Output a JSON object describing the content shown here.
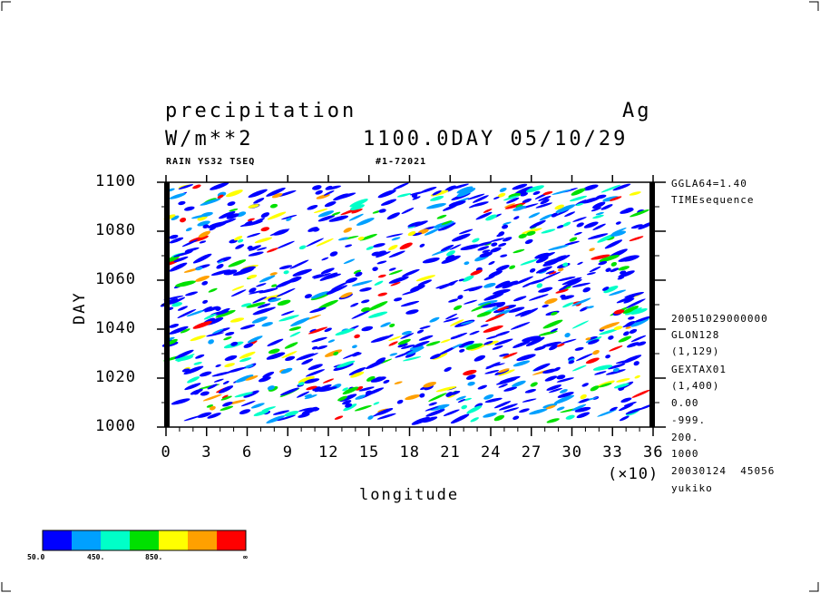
{
  "chart_data": {
    "type": "heatmap",
    "title": "precipitation",
    "top_right_label": "Ag",
    "units": "W/m**2",
    "time_label": "1100.0DAY 05/10/29",
    "subtitle_left": "RAIN YS32 TSEQ",
    "subtitle_right": "#1-72021",
    "xlabel": "longitude",
    "ylabel": "DAY",
    "x_multiplier": "(×10)",
    "xlim": [
      0,
      36
    ],
    "ylim": [
      1000,
      1100
    ],
    "x_ticks": [
      "0",
      "3",
      "6",
      "9",
      "12",
      "15",
      "18",
      "21",
      "24",
      "27",
      "30",
      "33",
      "36"
    ],
    "y_ticks": [
      "1000",
      "1020",
      "1040",
      "1060",
      "1080",
      "1100"
    ],
    "colorbar": {
      "colors": [
        "#0000ff",
        "#00a0ff",
        "#00ffc8",
        "#00e000",
        "#ffff00",
        "#ffa000",
        "#ff0000"
      ],
      "labels": [
        "50.0",
        "450.",
        "850.",
        "∞"
      ]
    }
  },
  "info_lines": [
    "GGLA64=1.40",
    "TIMEsequence",
    "20051029000000",
    "GLON128",
    "(1,129)",
    "GEXTAX01",
    "(1,400)",
    "0.00",
    "-999.",
    "200.",
    "1000",
    "20030124  45056",
    "yukiko"
  ]
}
